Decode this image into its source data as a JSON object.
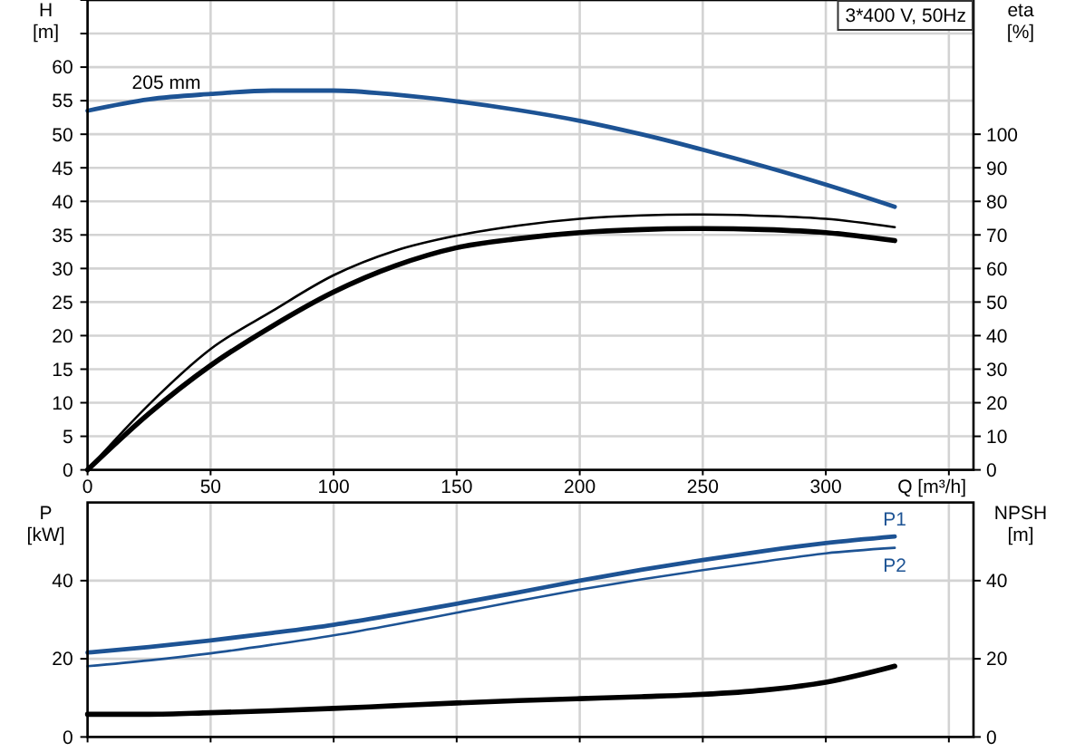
{
  "chart_data": [
    {
      "type": "line",
      "title": "3*400 V, 50Hz",
      "xlabel": "Q [m³/h]",
      "ylabel": "H [m]",
      "y2label": "eta [%]",
      "x": [
        0,
        25,
        50,
        75,
        100,
        125,
        150,
        175,
        200,
        225,
        250,
        275,
        300,
        328
      ],
      "xlim": [
        0,
        360
      ],
      "xticks": [
        0,
        50,
        100,
        150,
        200,
        250,
        300,
        {
          "value": 350,
          "label": null
        }
      ],
      "ylim": [
        0,
        70
      ],
      "yticks": [
        0,
        5,
        10,
        15,
        20,
        25,
        30,
        35,
        40,
        45,
        50,
        55,
        60,
        {
          "value": 65,
          "label": null
        },
        {
          "value": 70,
          "label": null
        }
      ],
      "y2lim": [
        0,
        140
      ],
      "y2ticks": [
        0,
        10,
        20,
        30,
        40,
        50,
        60,
        70,
        80,
        90,
        100
      ],
      "grid": true,
      "series": [
        {
          "color": "#1d5394",
          "values": [
            53.5,
            55.2,
            56.0,
            56.5,
            56.5,
            55.9,
            54.9,
            53.6,
            52.0,
            50.0,
            47.7,
            45.2,
            42.5,
            39.2
          ]
        },
        {
          "color": "#000000",
          "axis": "y2",
          "values": [
            0,
            19.5,
            36,
            47.3,
            58,
            65.3,
            69.8,
            72.8,
            74.8,
            75.8,
            76.1,
            75.7,
            74.8,
            72.3
          ]
        },
        {
          "color": "#000000",
          "axis": "y2",
          "values": [
            0,
            16.8,
            31.1,
            42.8,
            53,
            60.8,
            66.2,
            68.9,
            70.7,
            71.6,
            71.9,
            71.6,
            70.7,
            68.3
          ]
        }
      ],
      "annotations": [
        {
          "text": "205 mm",
          "x": 32,
          "y": 55.7
        }
      ]
    },
    {
      "type": "line",
      "ylabel": "P [kW]",
      "y2label": "NPSH [m]",
      "x": [
        0,
        25,
        50,
        75,
        100,
        125,
        150,
        175,
        200,
        225,
        250,
        275,
        300,
        328
      ],
      "xlim": [
        0,
        360
      ],
      "xticks": [
        0,
        50,
        100,
        150,
        200,
        250,
        300,
        350
      ],
      "tick_labels": "y",
      "ylim": [
        0,
        60
      ],
      "yticks": [
        0,
        20,
        40
      ],
      "y2lim": [
        0,
        60
      ],
      "y2ticks": [
        0,
        20,
        40
      ],
      "grid": true,
      "series": [
        {
          "name": "P1",
          "color": "#1d5394",
          "values": [
            21.6,
            23.0,
            24.7,
            26.6,
            28.7,
            31.3,
            34.1,
            37.0,
            40.0,
            42.8,
            45.3,
            47.6,
            49.6,
            51.3
          ]
        },
        {
          "name": "P2",
          "color": "#1d5394",
          "values": [
            18.1,
            19.6,
            21.4,
            23.6,
            26.0,
            28.8,
            31.8,
            34.8,
            37.7,
            40.3,
            42.7,
            44.9,
            47.0,
            48.4
          ]
        },
        {
          "color": "#000000",
          "axis": "y2",
          "values": [
            5.8,
            5.8,
            6.2,
            6.7,
            7.3,
            8.0,
            8.7,
            9.3,
            9.8,
            10.3,
            10.9,
            12.0,
            14.0,
            18.1
          ]
        }
      ]
    }
  ]
}
